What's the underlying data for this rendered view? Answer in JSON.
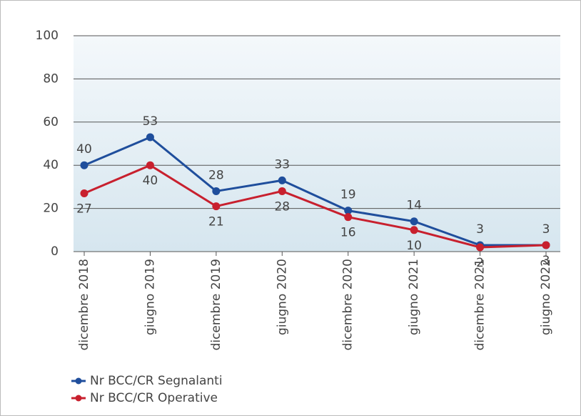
{
  "chart_data": {
    "type": "line",
    "categories": [
      "dicembre 2018",
      "giugno 2019",
      "dicembre 2019",
      "giugno 2020",
      "dicembre 2020",
      "giugno 2021",
      "dicembre 2021",
      "giugno 2022"
    ],
    "series": [
      {
        "name": "Nr BCC/CR Segnalanti",
        "color": "#1f4e9c",
        "values": [
          40,
          53,
          28,
          33,
          19,
          14,
          3,
          3
        ]
      },
      {
        "name": "Nr BCC/CR Operative",
        "color": "#c8202e",
        "values": [
          27,
          40,
          21,
          28,
          16,
          10,
          2,
          3
        ]
      }
    ],
    "ylim": [
      0,
      100
    ],
    "yticks": [
      0,
      20,
      40,
      60,
      80,
      100
    ],
    "grid": true,
    "legend": "bottom-left"
  }
}
